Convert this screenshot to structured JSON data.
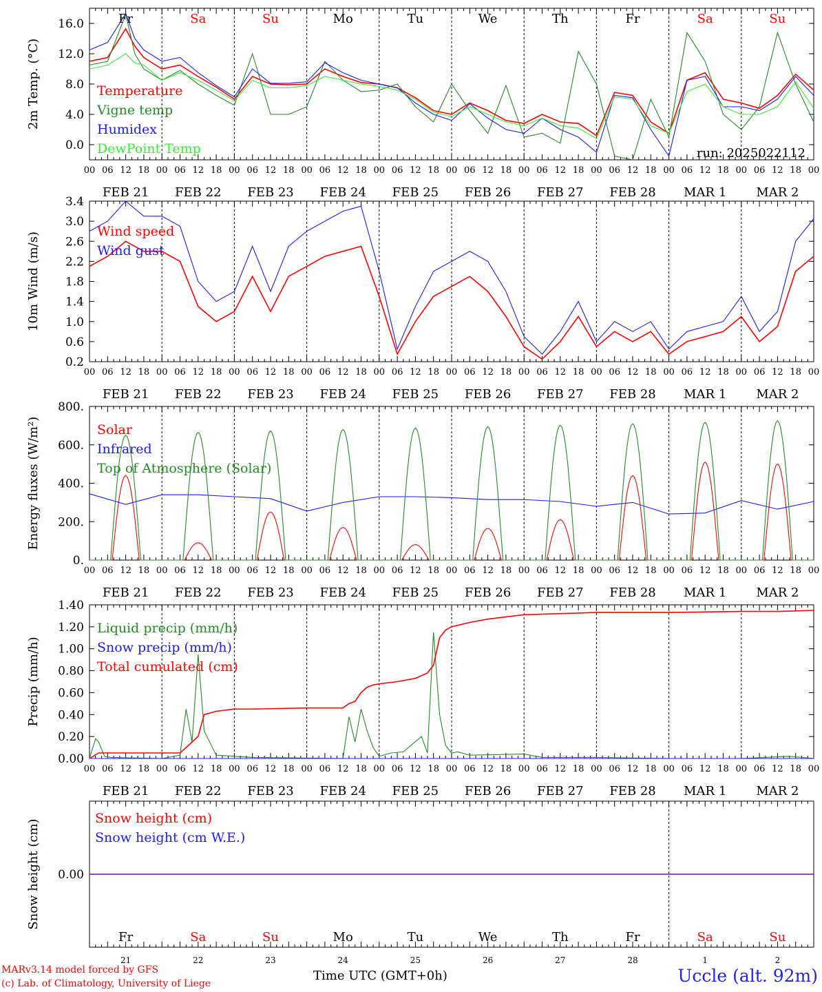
{
  "credits": {
    "line1": "MARv3.14 model forced by GFS",
    "line2": "(c) Lab. of Climatology, University of Liege"
  },
  "station": "Uccle (alt. 92m)",
  "time_axis_label": "Time UTC (GMT+0h)",
  "colors": {
    "red": "#ff0000",
    "green": "#228b22",
    "blue": "#1a1aff",
    "lightgreen": "#33ee33",
    "weekend": "#ff0000"
  },
  "days": [
    {
      "name": "Fr",
      "date": "FEB 21",
      "num": "21",
      "weekend": false
    },
    {
      "name": "Sa",
      "date": "FEB 22",
      "num": "22",
      "weekend": true
    },
    {
      "name": "Su",
      "date": "FEB 23",
      "num": "23",
      "weekend": true
    },
    {
      "name": "Mo",
      "date": "FEB 24",
      "num": "24",
      "weekend": false
    },
    {
      "name": "Tu",
      "date": "FEB 25",
      "num": "25",
      "weekend": false
    },
    {
      "name": "We",
      "date": "FEB 26",
      "num": "26",
      "weekend": false
    },
    {
      "name": "Th",
      "date": "FEB 27",
      "num": "27",
      "weekend": false
    },
    {
      "name": "Fr",
      "date": "FEB 28",
      "num": "28",
      "weekend": false
    },
    {
      "name": "Sa",
      "date": "MAR  1",
      "num": "1",
      "weekend": true
    },
    {
      "name": "Su",
      "date": "MAR  2",
      "num": "2",
      "weekend": true
    }
  ],
  "hour_ticks": [
    "00",
    "06",
    "12",
    "18"
  ],
  "chart_data": [
    {
      "type": "line",
      "ylabel": "2m Temp. (°C)",
      "ylim": [
        -2.0,
        18.0
      ],
      "yticks": [
        "0.0",
        "4.0",
        "8.0",
        "12.0",
        "16.0"
      ],
      "annotation": "run: 2025022112",
      "x_unit": "hours since FEB 21 00 UTC",
      "series": [
        {
          "name": "Temperature",
          "color": "#ff0000",
          "x": [
            0,
            6,
            12,
            15,
            18,
            24,
            30,
            36,
            42,
            48,
            54,
            60,
            66,
            72,
            78,
            84,
            90,
            96,
            102,
            108,
            114,
            120,
            126,
            132,
            138,
            144,
            150,
            156,
            162,
            168,
            174,
            180,
            186,
            192,
            198,
            204,
            210,
            216,
            222,
            228,
            234,
            240
          ],
          "values": [
            11.0,
            11.5,
            15.3,
            13.0,
            11.5,
            10.0,
            10.5,
            9.0,
            7.6,
            6.0,
            9.0,
            8.0,
            7.9,
            8.0,
            10.0,
            9.0,
            8.2,
            8.0,
            7.5,
            6.2,
            4.5,
            4.0,
            5.5,
            4.5,
            3.2,
            2.8,
            4.0,
            3.0,
            2.8,
            1.2,
            6.9,
            6.5,
            3.0,
            1.5,
            8.5,
            9.5,
            6.0,
            5.5,
            4.8,
            6.5,
            9.3,
            7.2
          ]
        },
        {
          "name": "Vigne temp",
          "color": "#228b22",
          "x": [
            0,
            6,
            12,
            15,
            18,
            24,
            30,
            36,
            42,
            48,
            54,
            60,
            66,
            72,
            78,
            84,
            90,
            96,
            102,
            108,
            114,
            120,
            126,
            132,
            138,
            144,
            150,
            156,
            162,
            168,
            174,
            180,
            186,
            192,
            198,
            204,
            210,
            216,
            222,
            228,
            234,
            240
          ],
          "values": [
            10.5,
            11.0,
            17.2,
            12.0,
            10.0,
            8.5,
            9.8,
            8.0,
            6.5,
            5.2,
            12.0,
            4.0,
            4.0,
            5.0,
            11.0,
            8.5,
            7.0,
            7.2,
            8.0,
            5.0,
            3.0,
            8.0,
            4.5,
            1.5,
            7.8,
            1.0,
            1.5,
            0.2,
            12.3,
            8.0,
            -1.5,
            -2.0,
            6.0,
            1.0,
            14.8,
            11.0,
            4.0,
            2.0,
            5.0,
            14.8,
            8.0,
            3.0
          ]
        },
        {
          "name": "Humidex",
          "color": "#1a1aff",
          "x": [
            0,
            6,
            12,
            15,
            18,
            24,
            30,
            36,
            42,
            48,
            54,
            60,
            66,
            72,
            78,
            84,
            90,
            96,
            102,
            108,
            114,
            120,
            126,
            132,
            138,
            144,
            150,
            156,
            162,
            168,
            174,
            180,
            186,
            192,
            198,
            204,
            210,
            216,
            222,
            228,
            234,
            240
          ],
          "values": [
            12.5,
            13.5,
            17.3,
            14.0,
            12.5,
            11.0,
            11.5,
            9.5,
            7.8,
            6.3,
            10.0,
            8.1,
            8.1,
            8.3,
            10.8,
            9.5,
            8.5,
            8.0,
            7.5,
            5.5,
            4.0,
            3.2,
            5.4,
            3.5,
            2.0,
            1.5,
            3.5,
            2.0,
            1.0,
            -1.0,
            6.5,
            6.2,
            2.0,
            -1.5,
            8.5,
            9.0,
            5.0,
            5.0,
            4.5,
            6.0,
            9.0,
            6.5
          ]
        },
        {
          "name": "DewPoint Temp",
          "color": "#33ee33",
          "x": [
            0,
            6,
            12,
            15,
            18,
            24,
            30,
            36,
            42,
            48,
            54,
            60,
            66,
            72,
            78,
            84,
            90,
            96,
            102,
            108,
            114,
            120,
            126,
            132,
            138,
            144,
            150,
            156,
            162,
            168,
            174,
            180,
            186,
            192,
            198,
            204,
            210,
            216,
            222,
            228,
            234,
            240
          ],
          "values": [
            10.0,
            10.5,
            12.0,
            10.8,
            10.5,
            8.5,
            9.5,
            8.5,
            7.2,
            5.8,
            8.5,
            7.5,
            7.5,
            7.8,
            9.0,
            8.5,
            8.0,
            7.7,
            7.2,
            6.0,
            4.3,
            3.7,
            5.0,
            4.0,
            3.0,
            2.5,
            3.5,
            2.5,
            2.2,
            0.8,
            6.3,
            6.0,
            2.5,
            1.5,
            7.0,
            8.0,
            5.0,
            4.0,
            4.0,
            5.0,
            8.3,
            4.8
          ]
        }
      ]
    },
    {
      "type": "line",
      "ylabel": "10m Wind (m/s)",
      "ylim": [
        0.2,
        3.4
      ],
      "yticks": [
        "0.2",
        "0.6",
        "1.0",
        "1.4",
        "1.8",
        "2.2",
        "2.6",
        "3.0",
        "3.4"
      ],
      "x_unit": "hours since FEB 21 00 UTC",
      "series": [
        {
          "name": "Wind speed",
          "color": "#ff0000",
          "x": [
            0,
            6,
            12,
            18,
            24,
            30,
            36,
            42,
            48,
            54,
            60,
            66,
            72,
            78,
            84,
            90,
            96,
            102,
            108,
            114,
            120,
            126,
            132,
            138,
            144,
            150,
            156,
            162,
            168,
            174,
            180,
            186,
            192,
            198,
            204,
            210,
            216,
            222,
            228,
            234,
            240
          ],
          "values": [
            2.1,
            2.3,
            2.6,
            2.4,
            2.4,
            2.2,
            1.3,
            1.0,
            1.2,
            1.9,
            1.2,
            1.9,
            2.1,
            2.3,
            2.4,
            2.5,
            1.5,
            0.35,
            1.0,
            1.5,
            1.7,
            1.9,
            1.6,
            1.1,
            0.5,
            0.25,
            0.6,
            1.1,
            0.5,
            0.8,
            0.6,
            0.8,
            0.35,
            0.6,
            0.7,
            0.8,
            1.1,
            0.6,
            0.9,
            2.0,
            2.3
          ]
        },
        {
          "name": "Wind gust",
          "color": "#1a1aff",
          "x": [
            0,
            6,
            12,
            18,
            24,
            30,
            36,
            42,
            48,
            54,
            60,
            66,
            72,
            78,
            84,
            90,
            96,
            102,
            108,
            114,
            120,
            126,
            132,
            138,
            144,
            150,
            156,
            162,
            168,
            174,
            180,
            186,
            192,
            198,
            204,
            210,
            216,
            222,
            228,
            234,
            240
          ],
          "values": [
            2.8,
            3.0,
            3.4,
            3.1,
            3.1,
            2.9,
            1.8,
            1.4,
            1.6,
            2.5,
            1.6,
            2.5,
            2.8,
            3.0,
            3.2,
            3.3,
            2.0,
            0.45,
            1.3,
            2.0,
            2.2,
            2.4,
            2.2,
            1.6,
            0.7,
            0.35,
            0.8,
            1.4,
            0.6,
            1.0,
            0.8,
            1.0,
            0.45,
            0.8,
            0.9,
            1.0,
            1.5,
            0.8,
            1.2,
            2.6,
            3.05
          ]
        }
      ]
    },
    {
      "type": "line",
      "ylabel": "Energy fluxes (W/m²)",
      "ylim": [
        0,
        800
      ],
      "yticks": [
        "0.",
        "200.",
        "400.",
        "600.",
        "800."
      ],
      "x_unit": "hours since FEB 21 00 UTC",
      "series": [
        {
          "name": "Solar",
          "color": "#ff0000",
          "daily_peak_hour": 12,
          "daily_peaks": [
            440,
            90,
            250,
            170,
            80,
            165,
            210,
            440,
            510,
            500
          ]
        },
        {
          "name": "Infrared",
          "color": "#1a1aff",
          "x": [
            0,
            12,
            24,
            36,
            48,
            60,
            72,
            84,
            96,
            108,
            120,
            132,
            144,
            156,
            168,
            180,
            192,
            204,
            216,
            228,
            240
          ],
          "values": [
            345,
            290,
            340,
            340,
            330,
            320,
            255,
            300,
            330,
            330,
            325,
            315,
            315,
            305,
            280,
            300,
            240,
            245,
            310,
            265,
            305
          ]
        },
        {
          "name": "Top of Atmosphere (Solar)",
          "color": "#228b22",
          "daily_peak_hour": 12,
          "daily_peaks": [
            650,
            665,
            672,
            680,
            688,
            695,
            702,
            710,
            717,
            725
          ]
        }
      ]
    },
    {
      "type": "line",
      "ylabel": "Precip (mm/h)",
      "ylim": [
        0.0,
        1.4
      ],
      "yticks": [
        "0.00",
        "0.20",
        "0.40",
        "0.60",
        "0.80",
        "1.00",
        "1.20",
        "1.40"
      ],
      "x_unit": "hours since FEB 21 00 UTC",
      "series": [
        {
          "name": "Liquid precip (mm/h)",
          "color": "#228b22",
          "x": [
            0,
            2,
            3,
            5,
            7,
            24,
            30,
            32,
            34,
            36,
            38,
            42,
            48,
            54,
            84,
            86,
            88,
            90,
            92,
            94,
            96,
            100,
            104,
            110,
            112,
            114,
            116,
            118,
            120,
            122,
            126,
            144,
            150,
            168,
            192,
            216,
            232,
            240
          ],
          "values": [
            0,
            0.18,
            0.15,
            0.02,
            0.01,
            0.0,
            0.03,
            0.45,
            0.15,
            0.95,
            0.25,
            0.03,
            0.02,
            0.01,
            0.0,
            0.38,
            0.15,
            0.45,
            0.25,
            0.1,
            0.02,
            0.05,
            0.06,
            0.2,
            0.05,
            1.15,
            0.4,
            0.12,
            0.05,
            0.06,
            0.03,
            0.04,
            0.01,
            0.01,
            0.0,
            0.0,
            0.02,
            0.0
          ]
        },
        {
          "name": "Snow precip (mm/h)",
          "color": "#1a1aff",
          "x": [
            0,
            240
          ],
          "values": [
            0,
            0
          ]
        },
        {
          "name": "Total cumulated (cm)",
          "color": "#ff0000",
          "x": [
            0,
            3,
            6,
            30,
            32,
            34,
            36,
            38,
            42,
            48,
            54,
            72,
            84,
            86,
            88,
            90,
            92,
            94,
            96,
            102,
            108,
            112,
            114,
            116,
            118,
            120,
            126,
            132,
            144,
            168,
            192,
            216,
            228,
            240
          ],
          "values": [
            0,
            0.05,
            0.05,
            0.05,
            0.1,
            0.15,
            0.2,
            0.4,
            0.43,
            0.45,
            0.45,
            0.46,
            0.46,
            0.5,
            0.52,
            0.6,
            0.65,
            0.67,
            0.68,
            0.7,
            0.73,
            0.78,
            0.85,
            1.1,
            1.17,
            1.2,
            1.24,
            1.27,
            1.31,
            1.33,
            1.33,
            1.34,
            1.34,
            1.35
          ]
        }
      ]
    },
    {
      "type": "line",
      "ylabel": "Snow height (cm)",
      "ylim": [
        -1,
        1
      ],
      "yticks": [
        "0.00"
      ],
      "x_unit": "hours since FEB 21 00 UTC",
      "series": [
        {
          "name": "Snow height (cm)",
          "color": "#ff0000",
          "x": [
            0,
            240
          ],
          "values": [
            0,
            0
          ]
        },
        {
          "name": "Snow height (cm W.E.)",
          "color": "#1a1aff",
          "x": [
            0,
            240
          ],
          "values": [
            0,
            0
          ]
        }
      ]
    }
  ]
}
